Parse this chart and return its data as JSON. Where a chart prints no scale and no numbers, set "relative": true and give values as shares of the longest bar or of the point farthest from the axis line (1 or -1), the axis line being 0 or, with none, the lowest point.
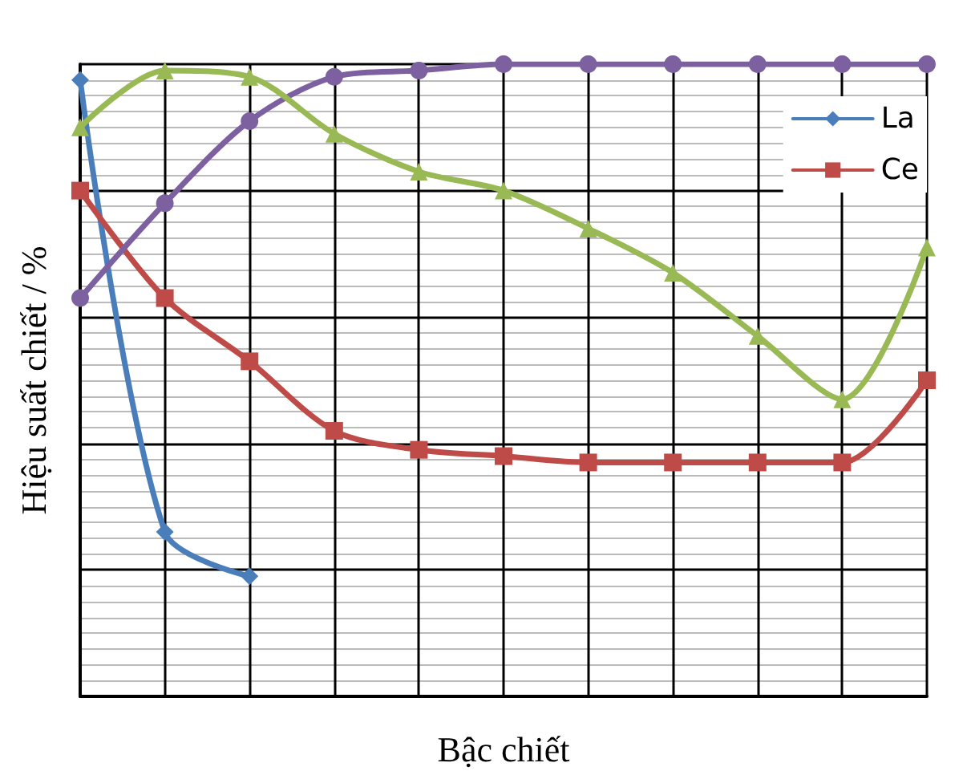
{
  "chart_data": {
    "type": "line",
    "relative": true,
    "xlabel": "Bậc chiết",
    "ylabel": "Hiệu suất chiết / %",
    "grid": true,
    "legend": "top right",
    "categories": [
      null,
      null,
      null,
      null,
      null,
      null,
      null,
      null,
      null,
      null,
      null
    ],
    "series": [
      {
        "name": "La",
        "color": "#4a7ebb",
        "marker": "diamond",
        "values": [
          0.975,
          0.26,
          0.19,
          null,
          null,
          null,
          null,
          null,
          null,
          null,
          null
        ]
      },
      {
        "name": "Ce",
        "color": "#be4b48",
        "marker": "square",
        "values": [
          0.8,
          0.63,
          0.53,
          0.42,
          0.39,
          0.38,
          0.37,
          0.37,
          0.37,
          0.37,
          0.5
        ]
      },
      {
        "color": "#7d60a0",
        "marker": "circle",
        "values": [
          0.63,
          0.78,
          0.91,
          0.98,
          0.99,
          1,
          1,
          1,
          1,
          1,
          1
        ]
      },
      {
        "color": "#98b954",
        "marker": "triangle",
        "values": [
          0.9,
          0.99,
          0.98,
          0.89,
          0.83,
          0.8,
          0.74,
          0.67,
          0.57,
          0.47,
          0.71
        ]
      }
    ]
  }
}
